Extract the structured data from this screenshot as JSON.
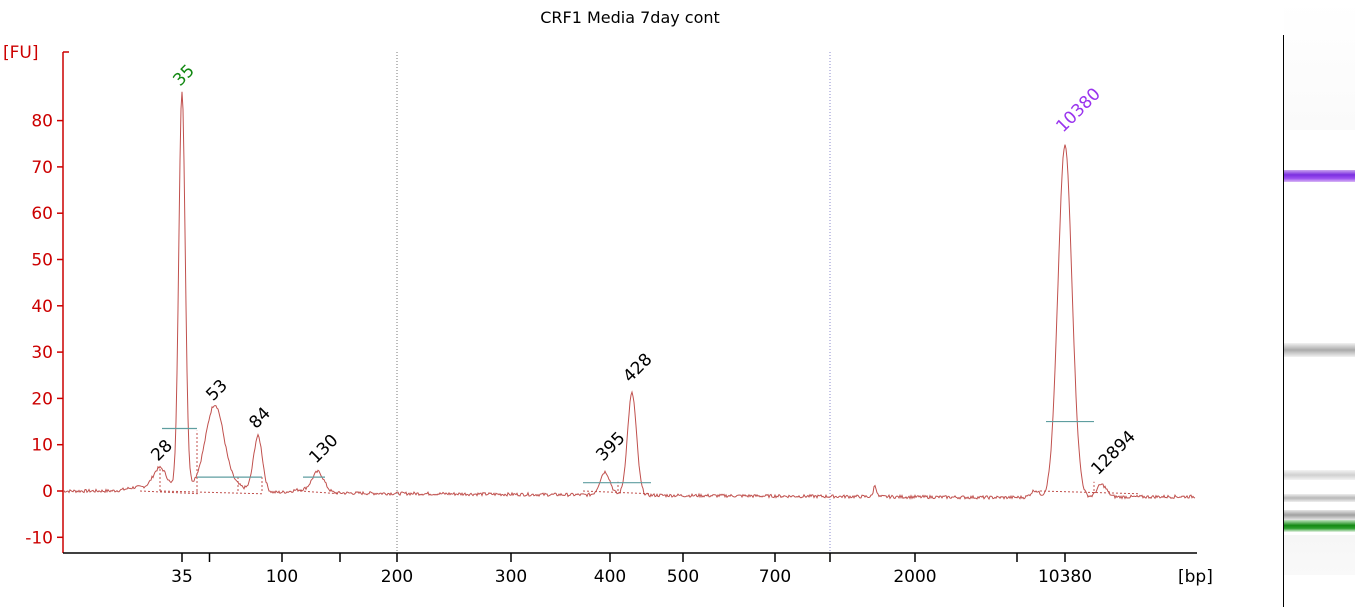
{
  "chart_data": {
    "type": "line",
    "title": "CRF1 Media 7day cont",
    "ylabel": "[FU]",
    "xlabel": "[bp]",
    "ylim": [
      -10,
      90
    ],
    "y_ticks": [
      -10,
      0,
      10,
      20,
      30,
      40,
      50,
      60,
      70,
      80
    ],
    "x_scale": "nonlinear (electrophoresis size ladder)",
    "x_tick_labels": [
      "35",
      "100",
      "200",
      "300",
      "400",
      "500",
      "700",
      "2000",
      "10380"
    ],
    "x_ticks_unlabeled": [
      "~50",
      "~150",
      "~1000",
      "~4000"
    ],
    "vertical_dotted_lines": [
      "200",
      "~1000"
    ],
    "series": [
      {
        "peaks": [
          {
            "label": "28",
            "size_bp": 28,
            "fu": 5,
            "color": "#000000"
          },
          {
            "label": "35",
            "size_bp": 35,
            "fu": 86,
            "color": "#118811",
            "marker": "lower"
          },
          {
            "label": "53",
            "size_bp": 53,
            "fu": 18,
            "color": "#000000"
          },
          {
            "label": "84",
            "size_bp": 84,
            "fu": 12,
            "color": "#000000"
          },
          {
            "label": "130",
            "size_bp": 130,
            "fu": 4.5,
            "color": "#000000"
          },
          {
            "label": "395",
            "size_bp": 395,
            "fu": 5,
            "color": "#000000"
          },
          {
            "label": "428",
            "size_bp": 428,
            "fu": 22,
            "color": "#000000"
          },
          {
            "label": "10380",
            "size_bp": 10380,
            "fu": 76,
            "color": "#9933ee",
            "marker": "upper"
          },
          {
            "label": "12894",
            "size_bp": 12894,
            "fu": 2,
            "color": "#000000"
          }
        ]
      }
    ],
    "colors": {
      "trace": "#c0504d",
      "axis_y": "#cc0000",
      "lower_marker": "#118811",
      "upper_marker": "#9933ee",
      "baseline_segments": "#5f9ea0"
    }
  },
  "gel_lane": {
    "bands": [
      "upper marker (purple)",
      "~428 bp (gray)",
      "~53 bp (gray)",
      "~35 bp (gray)",
      "lower marker (green)"
    ]
  }
}
